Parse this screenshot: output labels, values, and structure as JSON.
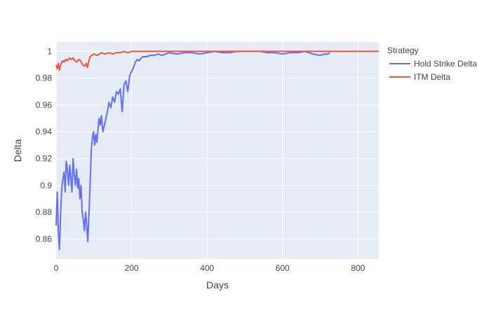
{
  "chart_data": {
    "type": "line",
    "xlabel": "Days",
    "ylabel": "Delta",
    "xlim": [
      0,
      855
    ],
    "ylim": [
      0.845,
      1.007
    ],
    "x_ticks": [
      0,
      200,
      400,
      600,
      800
    ],
    "x_tick_labels": [
      "0",
      "200",
      "400",
      "600",
      "800"
    ],
    "y_ticks": [
      0.86,
      0.88,
      0.9,
      0.92,
      0.94,
      0.96,
      0.98,
      1
    ],
    "y_tick_labels": [
      "0.86",
      "0.88",
      "0.9",
      "0.92",
      "0.94",
      "0.96",
      "0.98",
      "1"
    ],
    "grid": true,
    "legend": {
      "title": "Strategy",
      "position": "right"
    },
    "plot_bg": "#E5ECF6",
    "series": [
      {
        "name": "Hold Strike Delta",
        "color": "#636EFA",
        "x": [
          0,
          3,
          6,
          9,
          12,
          15,
          18,
          21,
          24,
          27,
          30,
          33,
          36,
          39,
          42,
          45,
          48,
          51,
          54,
          57,
          60,
          63,
          66,
          69,
          72,
          75,
          78,
          81,
          84,
          87,
          90,
          93,
          96,
          99,
          102,
          105,
          108,
          111,
          114,
          117,
          120,
          124,
          128,
          132,
          136,
          140,
          145,
          150,
          155,
          160,
          165,
          170,
          175,
          180,
          185,
          190,
          195,
          200,
          205,
          210,
          215,
          220,
          225,
          230,
          240,
          250,
          260,
          270,
          280,
          290,
          300,
          320,
          340,
          360,
          380,
          400,
          420,
          440,
          460,
          480,
          500,
          520,
          540,
          560,
          580,
          600,
          620,
          640,
          660,
          680,
          700,
          710,
          720,
          725
        ],
        "values": [
          0.87,
          0.895,
          0.865,
          0.852,
          0.88,
          0.898,
          0.905,
          0.91,
          0.895,
          0.918,
          0.912,
          0.9,
          0.915,
          0.905,
          0.895,
          0.92,
          0.908,
          0.9,
          0.912,
          0.898,
          0.905,
          0.89,
          0.9,
          0.88,
          0.875,
          0.866,
          0.88,
          0.87,
          0.858,
          0.878,
          0.9,
          0.925,
          0.935,
          0.94,
          0.93,
          0.938,
          0.932,
          0.942,
          0.95,
          0.945,
          0.952,
          0.94,
          0.945,
          0.95,
          0.955,
          0.962,
          0.958,
          0.966,
          0.962,
          0.97,
          0.968,
          0.972,
          0.955,
          0.975,
          0.978,
          0.97,
          0.982,
          0.985,
          0.988,
          0.992,
          0.994,
          0.993,
          0.995,
          0.996,
          0.996,
          0.997,
          0.997,
          0.998,
          0.997,
          0.998,
          0.999,
          0.998,
          0.999,
          0.999,
          0.998,
          0.999,
          1.0,
          0.999,
          0.999,
          1.0,
          1.0,
          1.0,
          1.0,
          0.999,
          0.999,
          0.998,
          0.999,
          0.999,
          1.0,
          0.998,
          0.997,
          0.998,
          0.998,
          0.999
        ]
      },
      {
        "name": "ITM Delta",
        "color": "#EF553B",
        "x": [
          0,
          3,
          6,
          9,
          12,
          15,
          18,
          21,
          25,
          30,
          35,
          40,
          45,
          50,
          55,
          60,
          65,
          70,
          75,
          80,
          83,
          86,
          90,
          95,
          100,
          110,
          120,
          130,
          140,
          150,
          160,
          170,
          180,
          190,
          200,
          220,
          240,
          260,
          280,
          300,
          350,
          400,
          450,
          500,
          550,
          600,
          650,
          700,
          750,
          800,
          855
        ],
        "values": [
          0.99,
          0.987,
          0.991,
          0.986,
          0.99,
          0.992,
          0.993,
          0.992,
          0.994,
          0.993,
          0.995,
          0.994,
          0.995,
          0.993,
          0.992,
          0.994,
          0.993,
          0.99,
          0.989,
          0.991,
          0.988,
          0.992,
          0.996,
          0.997,
          0.998,
          0.997,
          0.999,
          0.998,
          0.999,
          0.998,
          0.999,
          0.999,
          1.0,
          0.999,
          1.0,
          1.0,
          1.0,
          1.0,
          1.0,
          1.0,
          1.0,
          1.0,
          1.0,
          1.0,
          1.0,
          1.0,
          1.0,
          1.0,
          1.0,
          1.0,
          1.0
        ]
      }
    ]
  }
}
